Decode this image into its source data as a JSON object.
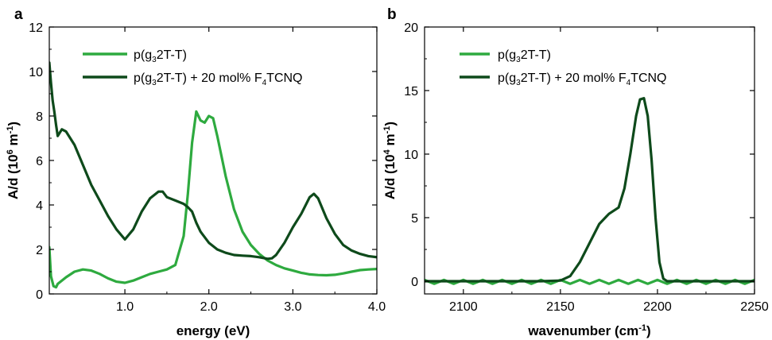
{
  "colors": {
    "pristine": "#2eaa3f",
    "doped": "#0e4a1b",
    "axis": "#000000"
  },
  "chart_data": [
    {
      "type": "line",
      "panel_label": "a",
      "xlabel": "energy (eV)",
      "ylabel": "A/d (10^6 m^-1)",
      "ylabel_parts": {
        "base": "A/d (10",
        "exp": "6",
        "mid": " m",
        "exp2": "-1",
        "end": ")"
      },
      "xlim": [
        0.1,
        4.0
      ],
      "ylim": [
        0,
        12
      ],
      "x_ticks": [
        1.0,
        2.0,
        3.0,
        4.0
      ],
      "x_tick_labels": [
        "1.0",
        "2.0",
        "3.0",
        "4.0"
      ],
      "y_ticks": [
        0,
        2,
        4,
        6,
        8,
        10,
        12
      ],
      "y_tick_labels": [
        "0",
        "2",
        "4",
        "6",
        "8",
        "10",
        "12"
      ],
      "legend_position": "top-right",
      "series": [
        {
          "name": "p(g32T-T)",
          "legend_parts": {
            "pre": "p(g",
            "sub": "3",
            "post": "2T-T)"
          },
          "color_key": "pristine",
          "x": [
            0.1,
            0.12,
            0.15,
            0.18,
            0.2,
            0.3,
            0.4,
            0.5,
            0.6,
            0.7,
            0.8,
            0.9,
            1.0,
            1.1,
            1.2,
            1.3,
            1.4,
            1.5,
            1.6,
            1.7,
            1.75,
            1.8,
            1.85,
            1.9,
            1.95,
            2.0,
            2.05,
            2.1,
            2.2,
            2.3,
            2.4,
            2.5,
            2.6,
            2.7,
            2.8,
            2.9,
            3.0,
            3.1,
            3.2,
            3.3,
            3.4,
            3.5,
            3.6,
            3.7,
            3.8,
            3.9,
            4.0
          ],
          "y": [
            2.1,
            0.8,
            0.35,
            0.3,
            0.45,
            0.75,
            1.0,
            1.1,
            1.05,
            0.9,
            0.7,
            0.55,
            0.5,
            0.6,
            0.75,
            0.9,
            1.0,
            1.1,
            1.3,
            2.6,
            4.5,
            6.8,
            8.2,
            7.8,
            7.7,
            8.0,
            7.9,
            7.1,
            5.3,
            3.8,
            2.8,
            2.2,
            1.8,
            1.5,
            1.3,
            1.15,
            1.05,
            0.95,
            0.88,
            0.85,
            0.84,
            0.86,
            0.92,
            1.0,
            1.07,
            1.1,
            1.12
          ]
        },
        {
          "name": "p(g32T-T) + 20 mol% F4TCNQ",
          "legend_parts": {
            "pre": "p(g",
            "sub": "3",
            "mid": "2T-T) + 20 mol% F",
            "sub2": "4",
            "post": "TCNQ"
          },
          "color_key": "doped",
          "x": [
            0.1,
            0.12,
            0.14,
            0.16,
            0.18,
            0.2,
            0.25,
            0.3,
            0.4,
            0.5,
            0.6,
            0.7,
            0.8,
            0.9,
            1.0,
            1.1,
            1.2,
            1.3,
            1.4,
            1.45,
            1.5,
            1.6,
            1.7,
            1.75,
            1.8,
            1.85,
            1.9,
            2.0,
            2.1,
            2.2,
            2.3,
            2.4,
            2.5,
            2.6,
            2.7,
            2.75,
            2.8,
            2.9,
            3.0,
            3.1,
            3.2,
            3.25,
            3.3,
            3.4,
            3.5,
            3.6,
            3.7,
            3.8,
            3.9,
            4.0
          ],
          "y": [
            10.4,
            9.5,
            8.7,
            8.2,
            7.6,
            7.1,
            7.4,
            7.3,
            6.7,
            5.8,
            4.9,
            4.2,
            3.5,
            2.9,
            2.45,
            2.9,
            3.7,
            4.3,
            4.6,
            4.6,
            4.35,
            4.2,
            4.05,
            3.9,
            3.7,
            3.2,
            2.8,
            2.3,
            2.0,
            1.85,
            1.75,
            1.72,
            1.7,
            1.65,
            1.58,
            1.6,
            1.75,
            2.3,
            3.0,
            3.6,
            4.35,
            4.5,
            4.3,
            3.4,
            2.7,
            2.2,
            1.95,
            1.8,
            1.7,
            1.65
          ]
        }
      ]
    },
    {
      "type": "line",
      "panel_label": "b",
      "xlabel": "wavenumber (cm^-1)",
      "xlabel_parts": {
        "base": "wavenumber (cm",
        "exp": "-1",
        "end": ")"
      },
      "ylabel": "A/d (10^4 m^-1)",
      "ylabel_parts": {
        "base": "A/d (10",
        "exp": "4",
        "mid": " m",
        "exp2": "-1",
        "end": ")"
      },
      "xlim": [
        2080,
        2250
      ],
      "ylim": [
        -1,
        20
      ],
      "x_ticks": [
        2100,
        2150,
        2200,
        2250
      ],
      "x_tick_labels": [
        "2100",
        "2150",
        "2200",
        "2250"
      ],
      "y_ticks": [
        0,
        5,
        10,
        15,
        20
      ],
      "y_tick_labels": [
        "0",
        "5",
        "10",
        "15",
        "20"
      ],
      "legend_position": "top-right",
      "series": [
        {
          "name": "p(g32T-T)",
          "legend_parts": {
            "pre": "p(g",
            "sub": "3",
            "post": "2T-T)"
          },
          "color_key": "pristine",
          "x": [
            2080,
            2085,
            2090,
            2095,
            2100,
            2105,
            2110,
            2115,
            2120,
            2125,
            2130,
            2135,
            2140,
            2145,
            2150,
            2155,
            2160,
            2165,
            2170,
            2175,
            2180,
            2185,
            2190,
            2195,
            2200,
            2205,
            2210,
            2215,
            2220,
            2225,
            2230,
            2235,
            2240,
            2245,
            2250
          ],
          "y": [
            0.1,
            -0.2,
            0.1,
            -0.2,
            0.1,
            -0.2,
            0.1,
            -0.2,
            0.1,
            -0.2,
            0.1,
            -0.2,
            0.1,
            -0.2,
            0.1,
            -0.2,
            0.1,
            -0.2,
            0.1,
            -0.2,
            0.1,
            -0.2,
            0.1,
            -0.2,
            0.1,
            -0.2,
            0.1,
            -0.2,
            0.1,
            -0.2,
            0.1,
            -0.2,
            0.1,
            -0.2,
            0.1
          ]
        },
        {
          "name": "p(g32T-T) + 20 mol% F4TCNQ",
          "legend_parts": {
            "pre": "p(g",
            "sub": "3",
            "mid": "2T-T) + 20 mol% F",
            "sub2": "4",
            "post": "TCNQ"
          },
          "color_key": "doped",
          "x": [
            2080,
            2090,
            2100,
            2110,
            2120,
            2130,
            2140,
            2150,
            2155,
            2160,
            2165,
            2170,
            2175,
            2180,
            2183,
            2186,
            2189,
            2191,
            2193,
            2195,
            2197,
            2199,
            2201,
            2203,
            2205,
            2210,
            2220,
            2230,
            2240,
            2250
          ],
          "y": [
            0.0,
            0.0,
            0.0,
            0.0,
            0.0,
            0.0,
            0.0,
            0.05,
            0.4,
            1.5,
            3.0,
            4.5,
            5.3,
            5.8,
            7.3,
            10.0,
            13.0,
            14.3,
            14.4,
            13.0,
            9.5,
            5.0,
            1.5,
            0.2,
            0.0,
            0.0,
            0.0,
            0.0,
            0.0,
            0.0
          ]
        }
      ]
    }
  ]
}
